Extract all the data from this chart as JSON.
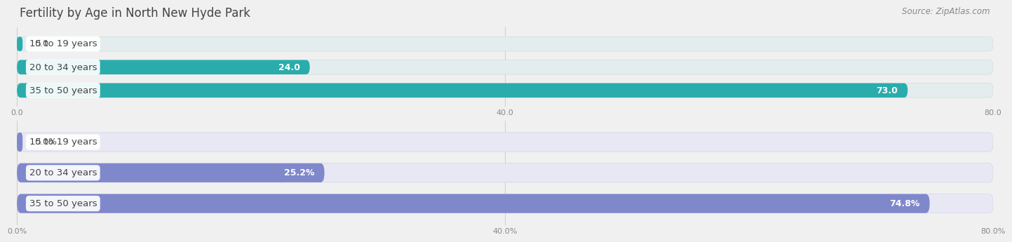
{
  "title": "Fertility by Age in North New Hyde Park",
  "source": "Source: ZipAtlas.com",
  "top_section": {
    "categories": [
      "15 to 19 years",
      "20 to 34 years",
      "35 to 50 years"
    ],
    "values": [
      0.0,
      24.0,
      73.0
    ],
    "xlim": [
      0,
      80.0
    ],
    "xticks": [
      0.0,
      40.0,
      80.0
    ],
    "xtick_labels": [
      "0.0",
      "40.0",
      "80.0"
    ],
    "bar_color_light": "#72d4d4",
    "bar_color_dark": "#2aacac",
    "bar_bg_color": "#e4eded",
    "bar_bg_border": "#d0dcdc"
  },
  "bottom_section": {
    "categories": [
      "15 to 19 years",
      "20 to 34 years",
      "35 to 50 years"
    ],
    "values": [
      0.0,
      25.2,
      74.8
    ],
    "xlim": [
      0,
      80.0
    ],
    "xticks": [
      0.0,
      40.0,
      80.0
    ],
    "xtick_labels": [
      "0.0%",
      "40.0%",
      "80.0%"
    ],
    "bar_color_light": "#aab4e8",
    "bar_color_dark": "#8088cc",
    "bar_bg_color": "#e8e8f4",
    "bar_bg_border": "#d4d4e8"
  },
  "bar_height": 0.62,
  "label_fontsize": 9.5,
  "value_fontsize": 9,
  "title_fontsize": 12,
  "source_fontsize": 8.5,
  "tick_fontsize": 8,
  "fig_bg": "#f0f0f0",
  "title_color": "#444444",
  "source_color": "#888888",
  "label_text_color": "#444444",
  "tick_color": "#888888",
  "grid_color": "#cccccc"
}
